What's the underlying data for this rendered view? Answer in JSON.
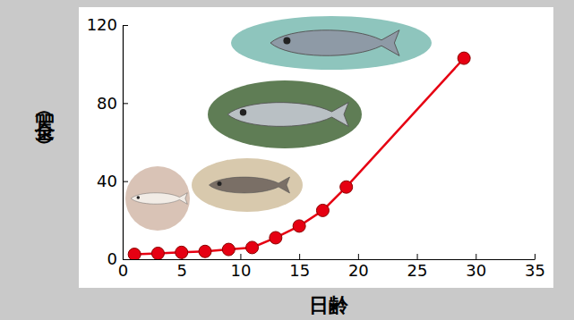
{
  "chart_data": {
    "type": "line",
    "x_label": "日齢",
    "y_label": "全長（㎜）",
    "x": [
      1,
      3,
      5,
      7,
      9,
      11,
      13,
      15,
      17,
      19,
      29
    ],
    "series": [
      {
        "name": null,
        "color": "#e60012",
        "marker": "circle",
        "line_style": "solid",
        "values": [
          2.5,
          3,
          3.5,
          4,
          5,
          6,
          11,
          17,
          25,
          37,
          103
        ]
      }
    ],
    "xlim": [
      0,
      35
    ],
    "xticks": [
      0,
      5,
      10,
      15,
      20,
      25,
      30,
      35
    ],
    "ylim": [
      0,
      120
    ],
    "yticks": [
      0,
      40,
      80,
      120
    ],
    "grid": false
  }
}
